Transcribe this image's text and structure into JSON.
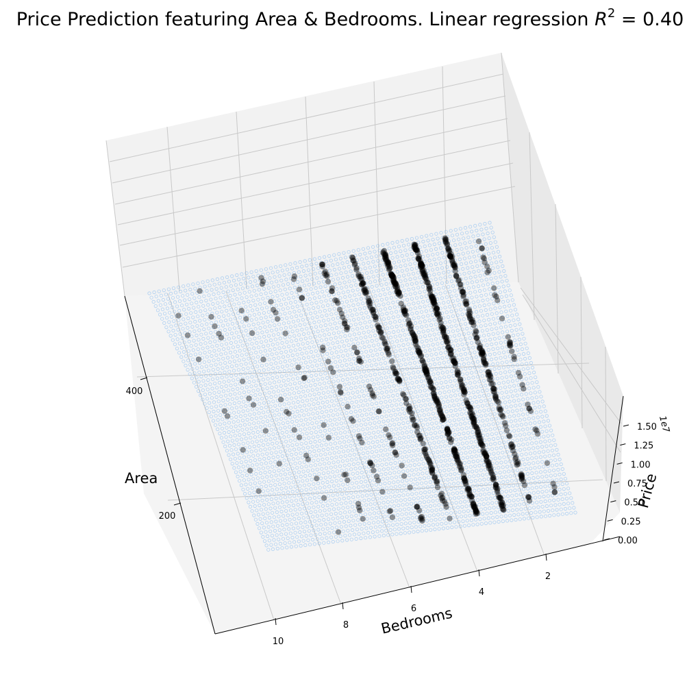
{
  "chart_data": {
    "type": "surface3d",
    "title_prefix": "Price Prediction featuring Area & Bedrooms. Linear regression ",
    "title_r2": "R",
    "title_sup": "2",
    "title_suffix": " = 0.40",
    "r_squared": 0.4,
    "xlabel": "Area",
    "ylabel": "Bedrooms",
    "zlabel": "Price",
    "z_offset_label": "1e7",
    "x_ticks": [
      "200",
      "400"
    ],
    "y_ticks": [
      "2",
      "4",
      "6",
      "8",
      "10"
    ],
    "z_ticks": [
      "0.00",
      "0.25",
      "0.50",
      "0.75",
      "1.00",
      "1.25",
      "1.50"
    ],
    "bedroom_levels": [
      1,
      2,
      3,
      4,
      5,
      6,
      7,
      8,
      9,
      10,
      11
    ],
    "surface_color": "#74b3f0",
    "point_color": "#000000",
    "pane_color": "#f2f2f2",
    "grid": true
  }
}
